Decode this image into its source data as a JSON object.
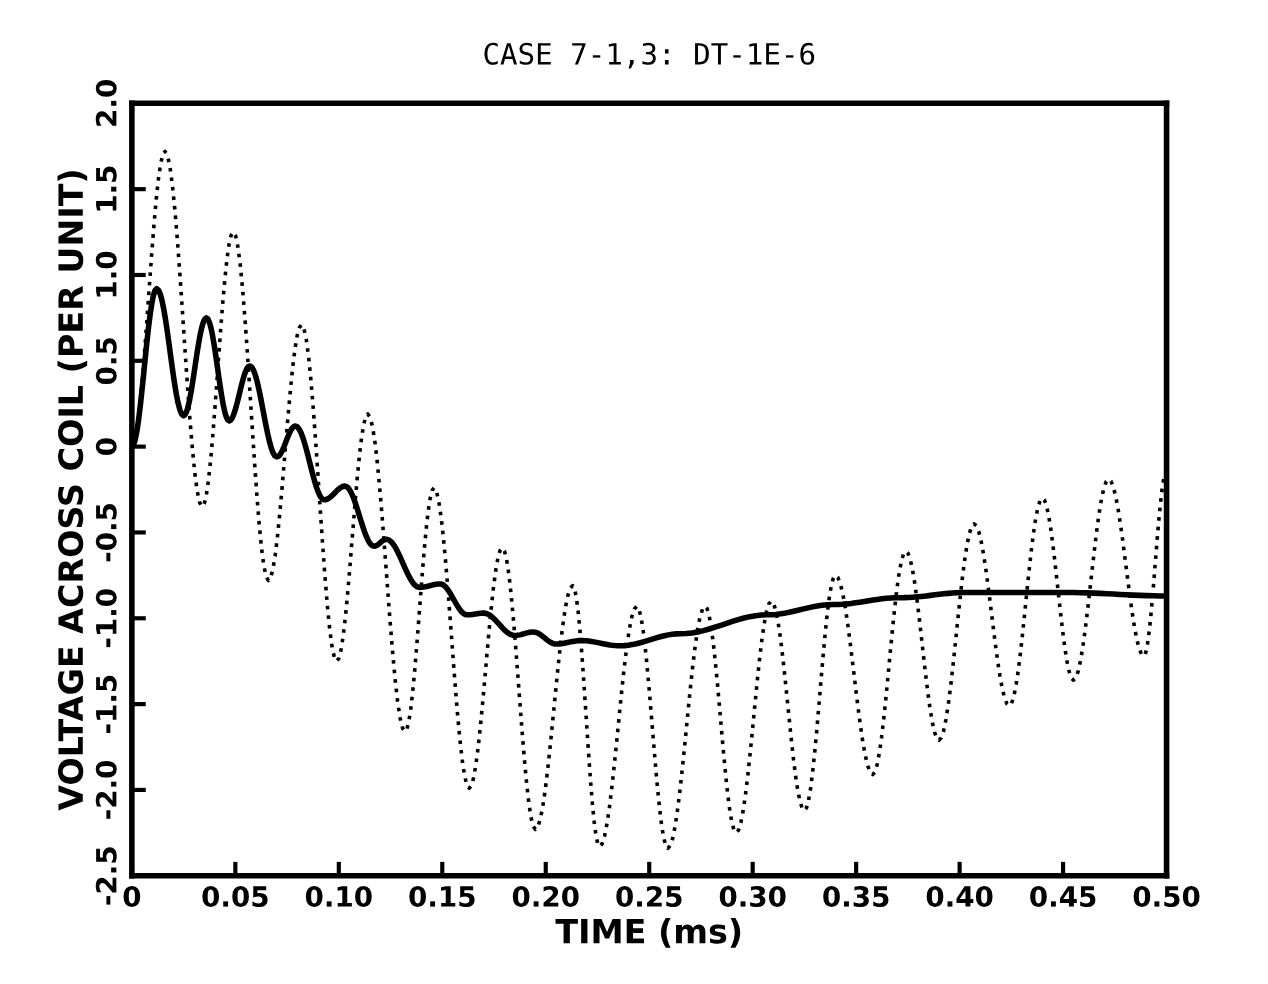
{
  "chart_data": {
    "type": "line",
    "title": "CASE 7-1,3: DT-1E-6",
    "xlabel": "TIME (ms)",
    "ylabel": "VOLTAGE ACROSS COIL (PER UNIT)",
    "xlim": [
      0,
      0.5
    ],
    "ylim": [
      -2.5,
      2.0
    ],
    "xticks": [
      0,
      {
        "value": 0.05,
        "label": "0.05"
      },
      {
        "value": 0.1,
        "label": "0.10"
      },
      {
        "value": 0.15,
        "label": "0.15"
      },
      {
        "value": 0.2,
        "label": "0.20"
      },
      {
        "value": 0.25,
        "label": "0.25"
      },
      {
        "value": 0.3,
        "label": "0.30"
      },
      {
        "value": 0.35,
        "label": "0.35"
      },
      {
        "value": 0.4,
        "label": "0.40"
      },
      {
        "value": 0.45,
        "label": "0.45"
      },
      {
        "value": 0.5,
        "label": "0.50"
      }
    ],
    "yticks": [
      {
        "value": 2,
        "label": "2.0"
      },
      1.5,
      {
        "value": 1,
        "label": "1.0"
      },
      0.5,
      0,
      -0.5,
      {
        "value": -1,
        "label": "-1.0"
      },
      -1.5,
      {
        "value": -2,
        "label": "-2.0"
      },
      -2.5
    ],
    "grid": false,
    "series": [
      {
        "color": "#000000",
        "line_style": "dotted",
        "x": [
          0.0,
          0.016,
          0.034,
          0.049,
          0.066,
          0.082,
          0.099,
          0.114,
          0.132,
          0.146,
          0.163,
          0.179,
          0.195,
          0.213,
          0.226,
          0.244,
          0.259,
          0.277,
          0.292,
          0.309,
          0.325,
          0.34,
          0.358,
          0.374,
          0.39,
          0.407,
          0.424,
          0.44,
          0.455,
          0.472,
          0.489,
          0.5
        ],
        "values": [
          0.0,
          1.72,
          -0.35,
          1.25,
          -0.78,
          0.71,
          -1.25,
          0.19,
          -1.66,
          -0.24,
          -1.99,
          -0.59,
          -2.23,
          -0.81,
          -2.33,
          -0.93,
          -2.34,
          -0.93,
          -2.25,
          -0.9,
          -2.12,
          -0.75,
          -1.91,
          -0.61,
          -1.71,
          -0.45,
          -1.51,
          -0.3,
          -1.36,
          -0.19,
          -1.22,
          -0.15
        ]
      },
      {
        "color": "#000000",
        "line_style": "solid",
        "x": [
          0.0,
          0.012,
          0.025,
          0.036,
          0.047,
          0.057,
          0.07,
          0.079,
          0.093,
          0.103,
          0.117,
          0.123,
          0.139,
          0.149,
          0.162,
          0.17,
          0.185,
          0.194,
          0.205,
          0.217,
          0.236,
          0.265,
          0.307,
          0.339,
          0.371,
          0.403,
          0.452,
          0.5
        ],
        "values": [
          0.0,
          0.92,
          0.18,
          0.75,
          0.15,
          0.47,
          -0.06,
          0.12,
          -0.31,
          -0.23,
          -0.58,
          -0.54,
          -0.82,
          -0.8,
          -0.98,
          -0.97,
          -1.1,
          -1.08,
          -1.15,
          -1.13,
          -1.16,
          -1.09,
          -0.98,
          -0.92,
          -0.88,
          -0.85,
          -0.85,
          -0.87
        ]
      }
    ]
  }
}
